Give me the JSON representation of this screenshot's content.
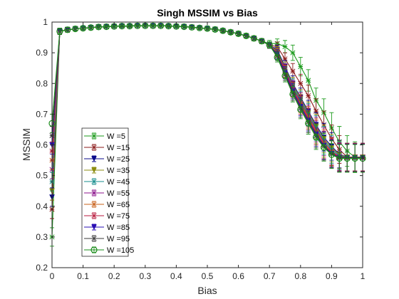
{
  "chart_data": {
    "type": "line",
    "title": "Singh MSSIM vs Bias",
    "xlabel": "Bias",
    "ylabel": "MSSIM",
    "xlim": [
      0,
      1
    ],
    "ylim": [
      0.2,
      1
    ],
    "xticks": [
      0,
      0.1,
      0.2,
      0.3,
      0.4,
      0.5,
      0.6,
      0.7,
      0.8,
      0.9,
      1
    ],
    "xtick_labels": [
      "0",
      "0.1",
      "0.2",
      "0.3",
      "0.4",
      "0.5",
      "0.6",
      "0.7",
      "0.8",
      "0.9",
      "1"
    ],
    "yticks": [
      0.2,
      0.3,
      0.4,
      0.5,
      0.6,
      0.7,
      0.8,
      0.9,
      1
    ],
    "ytick_labels": [
      "0.2",
      "0.3",
      "0.4",
      "0.5",
      "0.6",
      "0.7",
      "0.8",
      "0.9",
      "1"
    ],
    "grid": false,
    "legend_position": "bottom-left",
    "error_bars": true,
    "x": [
      0,
      0.025,
      0.05,
      0.075,
      0.1,
      0.125,
      0.15,
      0.175,
      0.2,
      0.225,
      0.25,
      0.275,
      0.3,
      0.325,
      0.35,
      0.375,
      0.4,
      0.425,
      0.45,
      0.475,
      0.5,
      0.525,
      0.55,
      0.575,
      0.6,
      0.625,
      0.65,
      0.675,
      0.7,
      0.725,
      0.75,
      0.775,
      0.8,
      0.825,
      0.85,
      0.875,
      0.9,
      0.925,
      0.95,
      0.975,
      1
    ],
    "series": [
      {
        "name": "W =5",
        "color": "#1a9a1a",
        "marker": "asterisk",
        "values": [
          0.3,
          0.97,
          0.975,
          0.978,
          0.98,
          0.982,
          0.984,
          0.985,
          0.986,
          0.987,
          0.987,
          0.988,
          0.988,
          0.988,
          0.988,
          0.987,
          0.986,
          0.985,
          0.983,
          0.981,
          0.979,
          0.976,
          0.972,
          0.967,
          0.962,
          0.955,
          0.947,
          0.938,
          0.93,
          0.93,
          0.92,
          0.9,
          0.855,
          0.81,
          0.745,
          0.705,
          0.655,
          0.61,
          0.58,
          0.56,
          0.56
        ],
        "errors": [
          0.03,
          0.01,
          0.008,
          0.006,
          0.005,
          0.005,
          0.005,
          0.004,
          0.004,
          0.004,
          0.004,
          0.004,
          0.004,
          0.004,
          0.004,
          0.004,
          0.004,
          0.004,
          0.004,
          0.005,
          0.005,
          0.005,
          0.006,
          0.006,
          0.006,
          0.007,
          0.008,
          0.008,
          0.01,
          0.015,
          0.02,
          0.025,
          0.03,
          0.035,
          0.04,
          0.045,
          0.05,
          0.05,
          0.05,
          0.05,
          0.045
        ]
      },
      {
        "name": "W =15",
        "color": "#8b1a1a",
        "marker": "asterisk",
        "values": [
          0.39,
          0.97,
          0.975,
          0.978,
          0.98,
          0.982,
          0.984,
          0.985,
          0.986,
          0.987,
          0.987,
          0.988,
          0.988,
          0.988,
          0.988,
          0.987,
          0.986,
          0.985,
          0.983,
          0.981,
          0.979,
          0.976,
          0.972,
          0.967,
          0.962,
          0.955,
          0.947,
          0.938,
          0.925,
          0.92,
          0.88,
          0.84,
          0.8,
          0.76,
          0.71,
          0.665,
          0.62,
          0.585,
          0.56,
          0.56,
          0.56
        ],
        "errors": [
          0.03,
          0.01,
          0.008,
          0.006,
          0.005,
          0.005,
          0.005,
          0.004,
          0.004,
          0.004,
          0.004,
          0.004,
          0.004,
          0.004,
          0.004,
          0.004,
          0.004,
          0.004,
          0.004,
          0.005,
          0.005,
          0.005,
          0.006,
          0.006,
          0.006,
          0.007,
          0.008,
          0.008,
          0.01,
          0.015,
          0.02,
          0.025,
          0.03,
          0.035,
          0.04,
          0.045,
          0.045,
          0.045,
          0.045,
          0.045,
          0.045
        ]
      },
      {
        "name": "W =25",
        "color": "#0b0b8b",
        "marker": "triangle",
        "values": [
          0.43,
          0.97,
          0.975,
          0.978,
          0.98,
          0.982,
          0.984,
          0.985,
          0.986,
          0.987,
          0.987,
          0.988,
          0.988,
          0.988,
          0.988,
          0.987,
          0.986,
          0.985,
          0.983,
          0.981,
          0.979,
          0.976,
          0.972,
          0.967,
          0.962,
          0.955,
          0.947,
          0.938,
          0.925,
          0.91,
          0.855,
          0.8,
          0.755,
          0.71,
          0.665,
          0.625,
          0.595,
          0.57,
          0.56,
          0.56,
          0.56
        ],
        "errors": [
          0.03,
          0.01,
          0.008,
          0.006,
          0.005,
          0.005,
          0.005,
          0.004,
          0.004,
          0.004,
          0.004,
          0.004,
          0.004,
          0.004,
          0.004,
          0.004,
          0.004,
          0.004,
          0.004,
          0.005,
          0.005,
          0.005,
          0.006,
          0.006,
          0.006,
          0.007,
          0.008,
          0.008,
          0.01,
          0.015,
          0.02,
          0.025,
          0.03,
          0.035,
          0.04,
          0.045,
          0.045,
          0.045,
          0.045,
          0.045,
          0.045
        ]
      },
      {
        "name": "W =35",
        "color": "#8c8c10",
        "marker": "triangle",
        "values": [
          0.45,
          0.97,
          0.975,
          0.978,
          0.98,
          0.982,
          0.984,
          0.985,
          0.986,
          0.987,
          0.987,
          0.988,
          0.988,
          0.988,
          0.988,
          0.987,
          0.986,
          0.985,
          0.983,
          0.981,
          0.979,
          0.976,
          0.972,
          0.967,
          0.962,
          0.955,
          0.947,
          0.938,
          0.925,
          0.905,
          0.85,
          0.795,
          0.75,
          0.705,
          0.66,
          0.62,
          0.59,
          0.568,
          0.56,
          0.56,
          0.56
        ],
        "errors": [
          0.03,
          0.01,
          0.008,
          0.006,
          0.005,
          0.005,
          0.005,
          0.004,
          0.004,
          0.004,
          0.004,
          0.004,
          0.004,
          0.004,
          0.004,
          0.004,
          0.004,
          0.004,
          0.004,
          0.005,
          0.005,
          0.005,
          0.006,
          0.006,
          0.006,
          0.007,
          0.008,
          0.008,
          0.01,
          0.015,
          0.02,
          0.025,
          0.03,
          0.035,
          0.04,
          0.045,
          0.045,
          0.045,
          0.045,
          0.045,
          0.045
        ]
      },
      {
        "name": "W =45",
        "color": "#158c8c",
        "marker": "asterisk",
        "values": [
          0.48,
          0.97,
          0.975,
          0.978,
          0.98,
          0.982,
          0.984,
          0.985,
          0.986,
          0.987,
          0.987,
          0.988,
          0.988,
          0.988,
          0.988,
          0.987,
          0.986,
          0.985,
          0.983,
          0.981,
          0.979,
          0.976,
          0.972,
          0.967,
          0.962,
          0.955,
          0.947,
          0.938,
          0.925,
          0.9,
          0.845,
          0.79,
          0.745,
          0.7,
          0.655,
          0.615,
          0.585,
          0.565,
          0.56,
          0.56,
          0.56
        ],
        "errors": [
          0.03,
          0.01,
          0.008,
          0.006,
          0.005,
          0.005,
          0.005,
          0.004,
          0.004,
          0.004,
          0.004,
          0.004,
          0.004,
          0.004,
          0.004,
          0.004,
          0.004,
          0.004,
          0.004,
          0.005,
          0.005,
          0.005,
          0.006,
          0.006,
          0.006,
          0.007,
          0.008,
          0.008,
          0.01,
          0.015,
          0.02,
          0.025,
          0.03,
          0.035,
          0.04,
          0.045,
          0.045,
          0.045,
          0.045,
          0.045,
          0.045
        ]
      },
      {
        "name": "W =55",
        "color": "#8c158c",
        "marker": "asterisk",
        "values": [
          0.52,
          0.97,
          0.975,
          0.978,
          0.98,
          0.982,
          0.984,
          0.985,
          0.986,
          0.987,
          0.987,
          0.988,
          0.988,
          0.988,
          0.988,
          0.987,
          0.986,
          0.985,
          0.983,
          0.981,
          0.979,
          0.976,
          0.972,
          0.967,
          0.962,
          0.955,
          0.947,
          0.938,
          0.925,
          0.9,
          0.845,
          0.785,
          0.74,
          0.695,
          0.65,
          0.61,
          0.58,
          0.562,
          0.56,
          0.56,
          0.56
        ],
        "errors": [
          0.03,
          0.01,
          0.008,
          0.006,
          0.005,
          0.005,
          0.005,
          0.004,
          0.004,
          0.004,
          0.004,
          0.004,
          0.004,
          0.004,
          0.004,
          0.004,
          0.004,
          0.004,
          0.004,
          0.005,
          0.005,
          0.005,
          0.006,
          0.006,
          0.006,
          0.007,
          0.008,
          0.008,
          0.01,
          0.015,
          0.02,
          0.025,
          0.03,
          0.035,
          0.04,
          0.045,
          0.045,
          0.045,
          0.045,
          0.045,
          0.045
        ]
      },
      {
        "name": "W =65",
        "color": "#c8601a",
        "marker": "asterisk",
        "values": [
          0.55,
          0.97,
          0.975,
          0.978,
          0.98,
          0.982,
          0.984,
          0.985,
          0.986,
          0.987,
          0.987,
          0.988,
          0.988,
          0.988,
          0.988,
          0.987,
          0.986,
          0.985,
          0.983,
          0.981,
          0.979,
          0.976,
          0.972,
          0.967,
          0.962,
          0.955,
          0.947,
          0.938,
          0.925,
          0.9,
          0.84,
          0.78,
          0.735,
          0.69,
          0.645,
          0.605,
          0.578,
          0.56,
          0.56,
          0.56,
          0.56
        ],
        "errors": [
          0.03,
          0.01,
          0.008,
          0.006,
          0.005,
          0.005,
          0.005,
          0.004,
          0.004,
          0.004,
          0.004,
          0.004,
          0.004,
          0.004,
          0.004,
          0.004,
          0.004,
          0.004,
          0.004,
          0.005,
          0.005,
          0.005,
          0.006,
          0.006,
          0.006,
          0.007,
          0.008,
          0.008,
          0.01,
          0.015,
          0.02,
          0.025,
          0.03,
          0.035,
          0.04,
          0.045,
          0.045,
          0.045,
          0.045,
          0.045,
          0.045
        ]
      },
      {
        "name": "W =75",
        "color": "#b81a3c",
        "marker": "asterisk",
        "values": [
          0.58,
          0.97,
          0.975,
          0.978,
          0.98,
          0.982,
          0.984,
          0.985,
          0.986,
          0.987,
          0.987,
          0.988,
          0.988,
          0.988,
          0.988,
          0.987,
          0.986,
          0.985,
          0.983,
          0.981,
          0.979,
          0.976,
          0.972,
          0.967,
          0.962,
          0.955,
          0.947,
          0.938,
          0.925,
          0.895,
          0.84,
          0.78,
          0.73,
          0.685,
          0.64,
          0.6,
          0.575,
          0.56,
          0.56,
          0.56,
          0.56
        ],
        "errors": [
          0.03,
          0.01,
          0.008,
          0.006,
          0.005,
          0.005,
          0.005,
          0.004,
          0.004,
          0.004,
          0.004,
          0.004,
          0.004,
          0.004,
          0.004,
          0.004,
          0.004,
          0.004,
          0.004,
          0.005,
          0.005,
          0.005,
          0.006,
          0.006,
          0.006,
          0.007,
          0.008,
          0.008,
          0.01,
          0.015,
          0.02,
          0.025,
          0.03,
          0.035,
          0.04,
          0.045,
          0.045,
          0.045,
          0.045,
          0.045,
          0.045
        ]
      },
      {
        "name": "W =85",
        "color": "#2a0fb4",
        "marker": "triangle",
        "values": [
          0.6,
          0.97,
          0.975,
          0.978,
          0.98,
          0.982,
          0.984,
          0.985,
          0.986,
          0.987,
          0.987,
          0.988,
          0.988,
          0.988,
          0.988,
          0.987,
          0.986,
          0.985,
          0.983,
          0.981,
          0.979,
          0.976,
          0.972,
          0.967,
          0.962,
          0.955,
          0.947,
          0.938,
          0.925,
          0.895,
          0.835,
          0.775,
          0.725,
          0.68,
          0.635,
          0.598,
          0.572,
          0.558,
          0.558,
          0.558,
          0.558
        ],
        "errors": [
          0.03,
          0.01,
          0.008,
          0.006,
          0.005,
          0.005,
          0.005,
          0.004,
          0.004,
          0.004,
          0.004,
          0.004,
          0.004,
          0.004,
          0.004,
          0.004,
          0.004,
          0.004,
          0.004,
          0.005,
          0.005,
          0.005,
          0.006,
          0.006,
          0.006,
          0.007,
          0.008,
          0.008,
          0.01,
          0.015,
          0.02,
          0.025,
          0.03,
          0.035,
          0.04,
          0.045,
          0.045,
          0.045,
          0.045,
          0.045,
          0.045
        ]
      },
      {
        "name": "W =95",
        "color": "#3a3a3a",
        "marker": "asterisk",
        "values": [
          0.63,
          0.97,
          0.975,
          0.978,
          0.98,
          0.982,
          0.984,
          0.985,
          0.986,
          0.987,
          0.987,
          0.988,
          0.988,
          0.988,
          0.988,
          0.987,
          0.986,
          0.985,
          0.983,
          0.981,
          0.979,
          0.976,
          0.972,
          0.967,
          0.962,
          0.955,
          0.947,
          0.938,
          0.925,
          0.89,
          0.83,
          0.77,
          0.72,
          0.675,
          0.63,
          0.595,
          0.57,
          0.557,
          0.557,
          0.557,
          0.557
        ],
        "errors": [
          0.03,
          0.01,
          0.008,
          0.006,
          0.005,
          0.005,
          0.005,
          0.004,
          0.004,
          0.004,
          0.004,
          0.004,
          0.004,
          0.004,
          0.004,
          0.004,
          0.004,
          0.004,
          0.004,
          0.005,
          0.005,
          0.005,
          0.006,
          0.006,
          0.006,
          0.007,
          0.008,
          0.008,
          0.01,
          0.015,
          0.02,
          0.025,
          0.03,
          0.035,
          0.04,
          0.045,
          0.045,
          0.045,
          0.045,
          0.045,
          0.045
        ]
      },
      {
        "name": "W =105",
        "color": "#1a8c1a",
        "marker": "circle",
        "values": [
          0.67,
          0.97,
          0.975,
          0.978,
          0.98,
          0.982,
          0.984,
          0.985,
          0.986,
          0.987,
          0.987,
          0.988,
          0.988,
          0.988,
          0.988,
          0.987,
          0.986,
          0.985,
          0.983,
          0.981,
          0.979,
          0.976,
          0.972,
          0.967,
          0.962,
          0.955,
          0.947,
          0.938,
          0.925,
          0.885,
          0.825,
          0.765,
          0.715,
          0.67,
          0.625,
          0.592,
          0.568,
          0.556,
          0.556,
          0.556,
          0.556
        ],
        "errors": [
          0.03,
          0.01,
          0.008,
          0.006,
          0.005,
          0.005,
          0.005,
          0.004,
          0.004,
          0.004,
          0.004,
          0.004,
          0.004,
          0.004,
          0.004,
          0.004,
          0.004,
          0.004,
          0.004,
          0.005,
          0.005,
          0.005,
          0.006,
          0.006,
          0.006,
          0.007,
          0.008,
          0.008,
          0.01,
          0.015,
          0.02,
          0.025,
          0.03,
          0.035,
          0.04,
          0.045,
          0.045,
          0.045,
          0.045,
          0.045,
          0.045
        ]
      }
    ]
  }
}
